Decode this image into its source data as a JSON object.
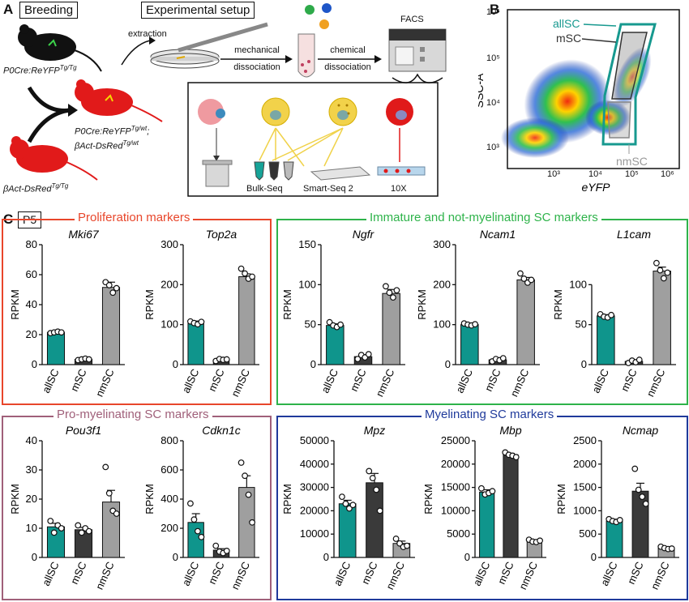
{
  "panel_a": {
    "label": "A",
    "breeding": "Breeding",
    "experimental_setup": "Experimental setup",
    "mouse1": "P0Cre:ReYFP",
    "mouse1_sup": "Tg/Tg",
    "mouse2_line1": "P0Cre:ReYFP",
    "mouse2_line1_sup": "Tg/wt",
    "mouse2_line2": "βAct-DsRed",
    "mouse2_line2_sup": "Tg/wt",
    "mouse3": "βAct-DsRed",
    "mouse3_sup": "Tg/Tg",
    "extraction": "extraction",
    "mechanical": "mechanical",
    "chemical": "chemical",
    "dissociation1": "dissociation",
    "dissociation2": "dissociation",
    "facs": "FACS",
    "bulk": "Bulk-Seq",
    "smart": "Smart-Seq 2",
    "tenx": "10X"
  },
  "panel_b": {
    "label": "B",
    "ylabel": "SSC-A",
    "xlabel": "eYFP",
    "gate_all": "allSC",
    "gate_m": "mSC",
    "gate_nm": "nmSC",
    "xticks": [
      "10³",
      "10⁴",
      "10⁵",
      "10⁶"
    ],
    "yticks": [
      "10⁶",
      "10⁵",
      "10⁴",
      "10³"
    ]
  },
  "panel_c": {
    "label": "C",
    "stage": "P5",
    "group_prolif": "Proliferation markers",
    "group_immature": "Immature and not-myelinating SC markers",
    "group_promyel": "Pro-myelinating SC markers",
    "group_myel": "Myelinating SC markers",
    "colors": {
      "prolif": "#e8462b",
      "immature": "#2eb34a",
      "promyel": "#a0607a",
      "myel": "#1f3a9b",
      "allSC": "#0f958c",
      "mSC": "#3a3a3a",
      "nmSC": "#9f9f9f"
    }
  },
  "chart_data": [
    {
      "type": "bar",
      "title": "Mki67",
      "ylabel": "RPKM",
      "categories": [
        "allSC",
        "mSC",
        "nmSC"
      ],
      "values": [
        21.5,
        3.5,
        51.5
      ],
      "errors": [
        0.6,
        0.5,
        3.5
      ],
      "ylim": [
        0,
        80
      ],
      "yticks": [
        0,
        20,
        40,
        60,
        80
      ],
      "points": [
        [
          21,
          21.5,
          22,
          21.5
        ],
        [
          3,
          3.5,
          4,
          3.5
        ],
        [
          55,
          53,
          48,
          51
        ]
      ]
    },
    {
      "type": "bar",
      "title": "Top2a",
      "ylabel": "RPKM",
      "categories": [
        "allSC",
        "mSC",
        "nmSC"
      ],
      "values": [
        105,
        12,
        220
      ],
      "errors": [
        4,
        3,
        7
      ],
      "ylim": [
        0,
        300
      ],
      "yticks": [
        0,
        100,
        200,
        300
      ],
      "points": [
        [
          108,
          104,
          101,
          107
        ],
        [
          9,
          14,
          12,
          13
        ],
        [
          240,
          228,
          215,
          220
        ]
      ]
    },
    {
      "type": "bar",
      "title": "Ngfr",
      "ylabel": "RPKM",
      "categories": [
        "allSC",
        "mSC",
        "nmSC"
      ],
      "values": [
        49,
        10,
        89
      ],
      "errors": [
        2,
        2.5,
        5
      ],
      "ylim": [
        0,
        150
      ],
      "yticks": [
        0,
        50,
        100,
        150
      ],
      "points": [
        [
          53,
          49,
          47,
          50
        ],
        [
          7,
          12,
          9,
          13
        ],
        [
          98,
          90,
          84,
          93
        ]
      ]
    },
    {
      "type": "bar",
      "title": "Ncam1",
      "ylabel": "RPKM",
      "categories": [
        "allSC",
        "mSC",
        "nmSC"
      ],
      "values": [
        100,
        12,
        212
      ],
      "errors": [
        2,
        2,
        6
      ],
      "ylim": [
        0,
        300
      ],
      "yticks": [
        0,
        100,
        200,
        300
      ],
      "points": [
        [
          103,
          100,
          98,
          101
        ],
        [
          8,
          14,
          11,
          16
        ],
        [
          228,
          215,
          205,
          212
        ]
      ]
    },
    {
      "type": "bar",
      "title": "L1cam",
      "ylabel": "RPKM",
      "categories": [
        "allSC",
        "mSC",
        "nmSC"
      ],
      "values": [
        61,
        4,
        117
      ],
      "errors": [
        1.5,
        1,
        5
      ],
      "ylim": [
        0,
        150
      ],
      "yticks": [
        0,
        50,
        100
      ],
      "points": [
        [
          63,
          60,
          59,
          62
        ],
        [
          2,
          5,
          3,
          6
        ],
        [
          127,
          118,
          108,
          115
        ]
      ]
    },
    {
      "type": "bar",
      "title": "Pou3f1",
      "ylabel": "RPKM",
      "categories": [
        "allSC",
        "mSC",
        "nmSC"
      ],
      "values": [
        10.5,
        9.5,
        19
      ],
      "errors": [
        1.2,
        0.8,
        4
      ],
      "ylim": [
        0,
        40
      ],
      "yticks": [
        0,
        10,
        20,
        30,
        40
      ],
      "points": [
        [
          12.5,
          8.5,
          11,
          10
        ],
        [
          11,
          8.5,
          10,
          9
        ],
        [
          31,
          22,
          16,
          15
        ]
      ]
    },
    {
      "type": "bar",
      "title": "Cdkn1c",
      "ylabel": "RPKM",
      "categories": [
        "allSC",
        "mSC",
        "nmSC"
      ],
      "values": [
        240,
        50,
        480
      ],
      "errors": [
        60,
        10,
        80
      ],
      "ylim": [
        0,
        800
      ],
      "yticks": [
        0,
        200,
        400,
        600,
        800
      ],
      "points": [
        [
          370,
          260,
          180,
          140
        ],
        [
          80,
          40,
          30,
          45
        ],
        [
          650,
          560,
          430,
          240
        ]
      ]
    },
    {
      "type": "bar",
      "title": "Mpz",
      "ylabel": "RPKM",
      "categories": [
        "allSC",
        "mSC",
        "nmSC"
      ],
      "values": [
        23000,
        32000,
        6000
      ],
      "errors": [
        1500,
        4000,
        1000
      ],
      "ylim": [
        0,
        50000
      ],
      "yticks": [
        0,
        10000,
        20000,
        30000,
        40000,
        50000
      ],
      "points": [
        [
          26000,
          23000,
          21000,
          22500
        ],
        [
          37000,
          34000,
          29000,
          20000
        ],
        [
          8000,
          6000,
          4500,
          5000
        ]
      ]
    },
    {
      "type": "bar",
      "title": "Mbp",
      "ylabel": "RPKM",
      "categories": [
        "allSC",
        "mSC",
        "nmSC"
      ],
      "values": [
        14000,
        22000,
        3500
      ],
      "errors": [
        500,
        300,
        200
      ],
      "ylim": [
        0,
        25000
      ],
      "yticks": [
        0,
        5000,
        10000,
        15000,
        20000,
        25000
      ],
      "points": [
        [
          14800,
          13500,
          13800,
          14200
        ],
        [
          22500,
          22000,
          21800,
          21500
        ],
        [
          3800,
          3400,
          3300,
          3600
        ]
      ]
    },
    {
      "type": "bar",
      "title": "Ncmap",
      "ylabel": "RPKM",
      "categories": [
        "allSC",
        "mSC",
        "nmSC"
      ],
      "values": [
        780,
        1420,
        200
      ],
      "errors": [
        40,
        170,
        20
      ],
      "ylim": [
        0,
        2500
      ],
      "yticks": [
        0,
        500,
        1000,
        1500,
        2000,
        2500
      ],
      "points": [
        [
          820,
          780,
          760,
          800
        ],
        [
          1900,
          1450,
          1300,
          1150
        ],
        [
          230,
          200,
          180,
          190
        ]
      ]
    }
  ]
}
